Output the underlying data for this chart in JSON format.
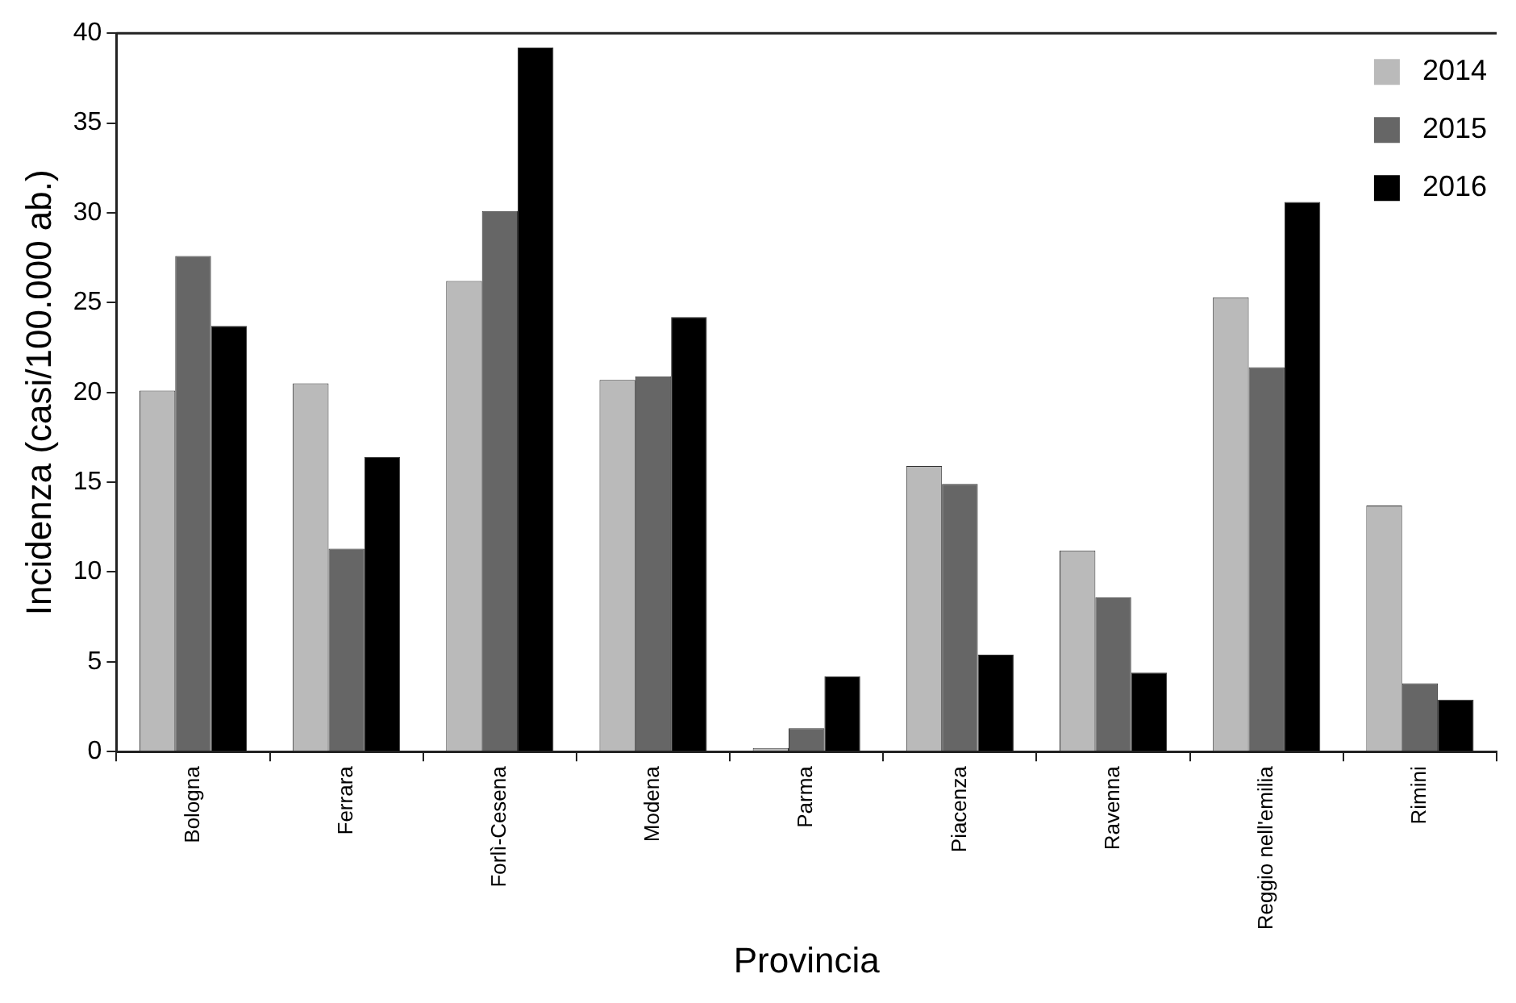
{
  "chart_data": {
    "type": "bar",
    "xlabel": "Provincia",
    "ylabel": "Incidenza (casi/100.000 ab.)",
    "categories": [
      "Bologna",
      "Ferrara",
      "Forlì-Cesena",
      "Modena",
      "Parma",
      "Piacenza",
      "Ravenna",
      "Reggio nell'emilia",
      "Rimini"
    ],
    "series": [
      {
        "name": "2014",
        "color": "#bababa",
        "values": [
          20.1,
          20.5,
          26.2,
          20.7,
          0.2,
          15.9,
          11.2,
          25.3,
          13.7
        ]
      },
      {
        "name": "2015",
        "color": "#666666",
        "values": [
          27.6,
          11.3,
          30.1,
          20.9,
          1.3,
          14.9,
          8.6,
          21.4,
          3.8
        ]
      },
      {
        "name": "2016",
        "color": "#000000",
        "values": [
          23.7,
          16.4,
          39.2,
          24.2,
          4.2,
          5.4,
          4.4,
          30.6,
          2.9
        ]
      }
    ],
    "ylim": [
      0,
      40
    ],
    "yticks": [
      0,
      5,
      10,
      15,
      20,
      25,
      30,
      35,
      40
    ],
    "grid": false,
    "legend": "top right"
  }
}
